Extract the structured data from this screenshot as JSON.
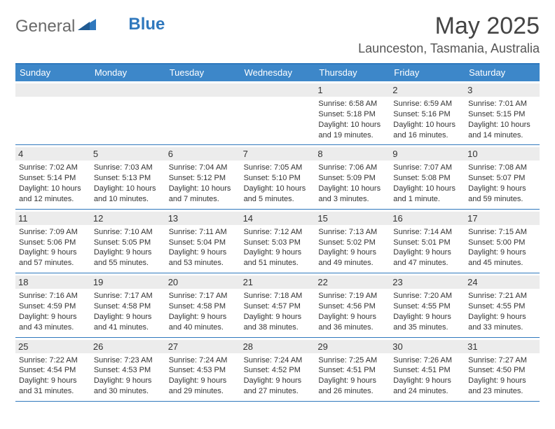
{
  "logo": {
    "text_left": "General",
    "text_right": "Blue"
  },
  "title": "May 2025",
  "location": "Launceston, Tasmania, Australia",
  "colors": {
    "header_bar": "#3d87c9",
    "header_border": "#2f78bd",
    "daynum_bg": "#ececec",
    "text": "#333333",
    "logo_gray": "#6a6a6a",
    "logo_blue": "#2f78bd"
  },
  "day_names": [
    "Sunday",
    "Monday",
    "Tuesday",
    "Wednesday",
    "Thursday",
    "Friday",
    "Saturday"
  ],
  "weeks": [
    [
      {
        "n": "",
        "sr": "",
        "ss": "",
        "dl": ""
      },
      {
        "n": "",
        "sr": "",
        "ss": "",
        "dl": ""
      },
      {
        "n": "",
        "sr": "",
        "ss": "",
        "dl": ""
      },
      {
        "n": "",
        "sr": "",
        "ss": "",
        "dl": ""
      },
      {
        "n": "1",
        "sr": "Sunrise: 6:58 AM",
        "ss": "Sunset: 5:18 PM",
        "dl": "Daylight: 10 hours and 19 minutes."
      },
      {
        "n": "2",
        "sr": "Sunrise: 6:59 AM",
        "ss": "Sunset: 5:16 PM",
        "dl": "Daylight: 10 hours and 16 minutes."
      },
      {
        "n": "3",
        "sr": "Sunrise: 7:01 AM",
        "ss": "Sunset: 5:15 PM",
        "dl": "Daylight: 10 hours and 14 minutes."
      }
    ],
    [
      {
        "n": "4",
        "sr": "Sunrise: 7:02 AM",
        "ss": "Sunset: 5:14 PM",
        "dl": "Daylight: 10 hours and 12 minutes."
      },
      {
        "n": "5",
        "sr": "Sunrise: 7:03 AM",
        "ss": "Sunset: 5:13 PM",
        "dl": "Daylight: 10 hours and 10 minutes."
      },
      {
        "n": "6",
        "sr": "Sunrise: 7:04 AM",
        "ss": "Sunset: 5:12 PM",
        "dl": "Daylight: 10 hours and 7 minutes."
      },
      {
        "n": "7",
        "sr": "Sunrise: 7:05 AM",
        "ss": "Sunset: 5:10 PM",
        "dl": "Daylight: 10 hours and 5 minutes."
      },
      {
        "n": "8",
        "sr": "Sunrise: 7:06 AM",
        "ss": "Sunset: 5:09 PM",
        "dl": "Daylight: 10 hours and 3 minutes."
      },
      {
        "n": "9",
        "sr": "Sunrise: 7:07 AM",
        "ss": "Sunset: 5:08 PM",
        "dl": "Daylight: 10 hours and 1 minute."
      },
      {
        "n": "10",
        "sr": "Sunrise: 7:08 AM",
        "ss": "Sunset: 5:07 PM",
        "dl": "Daylight: 9 hours and 59 minutes."
      }
    ],
    [
      {
        "n": "11",
        "sr": "Sunrise: 7:09 AM",
        "ss": "Sunset: 5:06 PM",
        "dl": "Daylight: 9 hours and 57 minutes."
      },
      {
        "n": "12",
        "sr": "Sunrise: 7:10 AM",
        "ss": "Sunset: 5:05 PM",
        "dl": "Daylight: 9 hours and 55 minutes."
      },
      {
        "n": "13",
        "sr": "Sunrise: 7:11 AM",
        "ss": "Sunset: 5:04 PM",
        "dl": "Daylight: 9 hours and 53 minutes."
      },
      {
        "n": "14",
        "sr": "Sunrise: 7:12 AM",
        "ss": "Sunset: 5:03 PM",
        "dl": "Daylight: 9 hours and 51 minutes."
      },
      {
        "n": "15",
        "sr": "Sunrise: 7:13 AM",
        "ss": "Sunset: 5:02 PM",
        "dl": "Daylight: 9 hours and 49 minutes."
      },
      {
        "n": "16",
        "sr": "Sunrise: 7:14 AM",
        "ss": "Sunset: 5:01 PM",
        "dl": "Daylight: 9 hours and 47 minutes."
      },
      {
        "n": "17",
        "sr": "Sunrise: 7:15 AM",
        "ss": "Sunset: 5:00 PM",
        "dl": "Daylight: 9 hours and 45 minutes."
      }
    ],
    [
      {
        "n": "18",
        "sr": "Sunrise: 7:16 AM",
        "ss": "Sunset: 4:59 PM",
        "dl": "Daylight: 9 hours and 43 minutes."
      },
      {
        "n": "19",
        "sr": "Sunrise: 7:17 AM",
        "ss": "Sunset: 4:58 PM",
        "dl": "Daylight: 9 hours and 41 minutes."
      },
      {
        "n": "20",
        "sr": "Sunrise: 7:17 AM",
        "ss": "Sunset: 4:58 PM",
        "dl": "Daylight: 9 hours and 40 minutes."
      },
      {
        "n": "21",
        "sr": "Sunrise: 7:18 AM",
        "ss": "Sunset: 4:57 PM",
        "dl": "Daylight: 9 hours and 38 minutes."
      },
      {
        "n": "22",
        "sr": "Sunrise: 7:19 AM",
        "ss": "Sunset: 4:56 PM",
        "dl": "Daylight: 9 hours and 36 minutes."
      },
      {
        "n": "23",
        "sr": "Sunrise: 7:20 AM",
        "ss": "Sunset: 4:55 PM",
        "dl": "Daylight: 9 hours and 35 minutes."
      },
      {
        "n": "24",
        "sr": "Sunrise: 7:21 AM",
        "ss": "Sunset: 4:55 PM",
        "dl": "Daylight: 9 hours and 33 minutes."
      }
    ],
    [
      {
        "n": "25",
        "sr": "Sunrise: 7:22 AM",
        "ss": "Sunset: 4:54 PM",
        "dl": "Daylight: 9 hours and 31 minutes."
      },
      {
        "n": "26",
        "sr": "Sunrise: 7:23 AM",
        "ss": "Sunset: 4:53 PM",
        "dl": "Daylight: 9 hours and 30 minutes."
      },
      {
        "n": "27",
        "sr": "Sunrise: 7:24 AM",
        "ss": "Sunset: 4:53 PM",
        "dl": "Daylight: 9 hours and 29 minutes."
      },
      {
        "n": "28",
        "sr": "Sunrise: 7:24 AM",
        "ss": "Sunset: 4:52 PM",
        "dl": "Daylight: 9 hours and 27 minutes."
      },
      {
        "n": "29",
        "sr": "Sunrise: 7:25 AM",
        "ss": "Sunset: 4:51 PM",
        "dl": "Daylight: 9 hours and 26 minutes."
      },
      {
        "n": "30",
        "sr": "Sunrise: 7:26 AM",
        "ss": "Sunset: 4:51 PM",
        "dl": "Daylight: 9 hours and 24 minutes."
      },
      {
        "n": "31",
        "sr": "Sunrise: 7:27 AM",
        "ss": "Sunset: 4:50 PM",
        "dl": "Daylight: 9 hours and 23 minutes."
      }
    ]
  ]
}
